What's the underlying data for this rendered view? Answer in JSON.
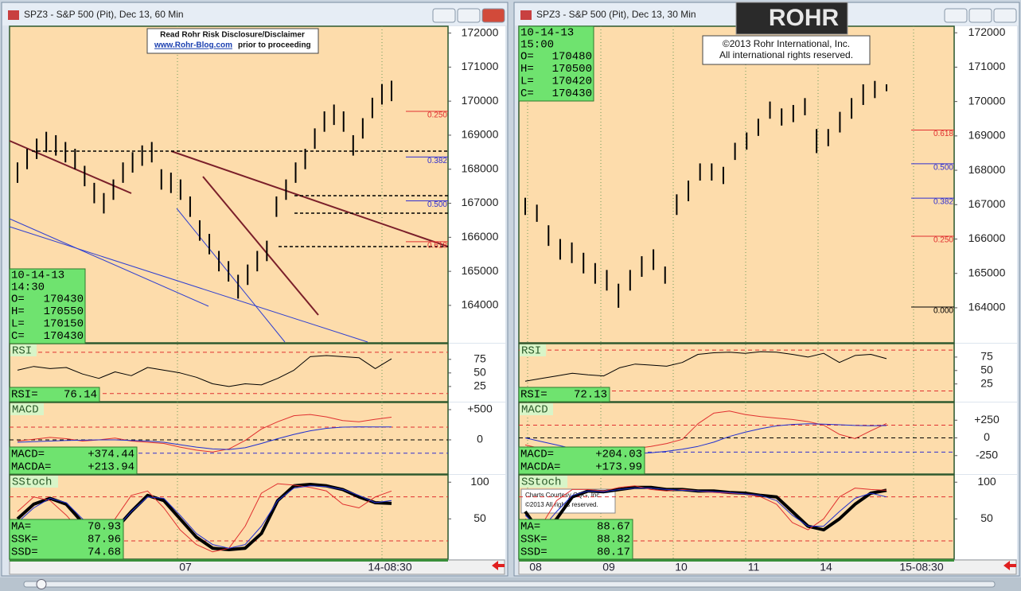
{
  "windows": [
    {
      "title": "SPZ3 - S&P 500 (Pit), Dec 13, 60 Min",
      "notice": [
        "Read Rohr Risk Disclosure/Disclaimer",
        "www.Rohr-Blog.com",
        "prior to proceeding"
      ],
      "price": {
        "lim": [
          162900,
          172200
        ],
        "ticks": [
          172000,
          171000,
          170000,
          169000,
          168000,
          167000,
          166000,
          165000,
          164000
        ],
        "highs": [
          168200,
          168600,
          168900,
          169100,
          169000,
          168800,
          168600,
          168100,
          167600,
          167300,
          167700,
          168200,
          168500,
          168700,
          168800,
          168000,
          167900,
          167700,
          167200,
          166500,
          166100,
          165600,
          165300,
          164900,
          165200,
          165600,
          165900,
          167200,
          167700,
          168200,
          168600,
          169200,
          169700,
          169900,
          169700,
          169000,
          169500,
          170100,
          170500,
          170600
        ],
        "lows": [
          167600,
          168000,
          168300,
          168500,
          168400,
          168200,
          168000,
          167500,
          167000,
          166700,
          167100,
          167600,
          167900,
          168100,
          168200,
          167400,
          167300,
          167100,
          166600,
          165900,
          165500,
          165000,
          164700,
          164200,
          164600,
          165000,
          165300,
          166600,
          167100,
          167600,
          168000,
          168600,
          169100,
          169300,
          169100,
          168400,
          168900,
          169500,
          169900,
          170000
        ]
      },
      "readout": {
        "date": "10-14-13",
        "time": "14:30",
        "rows": [
          {
            "label": "O=",
            "value": 170430
          },
          {
            "label": "H=",
            "value": 170550
          },
          {
            "label": "L=",
            "value": 170150
          },
          {
            "label": "C=",
            "value": 170430
          }
        ]
      },
      "fib": [
        {
          "label": "0.250",
          "price": 169700,
          "color": "#e03030"
        },
        {
          "label": "0.382",
          "price": 168360,
          "color": "#3030d0"
        },
        {
          "label": "0.500",
          "price": 167070,
          "color": "#3030d0"
        },
        {
          "label": "0.618",
          "price": 165870,
          "color": "#e03030"
        }
      ],
      "rsi": {
        "name": "RSI",
        "lim": [
          -3,
          104
        ],
        "ticks": [
          75,
          50,
          25
        ],
        "levels": [
          88,
          12
        ],
        "readout": {
          "label": "RSI=",
          "value": 76.14
        },
        "values": [
          55,
          62,
          58,
          60,
          48,
          40,
          52,
          45,
          60,
          55,
          50,
          42,
          30,
          25,
          30,
          28,
          40,
          55,
          80,
          82,
          80,
          78,
          58,
          76
        ]
      },
      "macd": {
        "name": "MACD",
        "lim": [
          -566,
          618
        ],
        "ticks": [
          {
            "value": 500,
            "label": "+500"
          },
          0
        ],
        "levels": [
          210,
          0,
          -220
        ],
        "series": [
          {
            "color": "#e03030",
            "values": [
              -20,
              10,
              40,
              20,
              -20,
              0,
              30,
              -20,
              -40,
              -60,
              -120,
              -170,
              -200,
              -150,
              -10,
              180,
              300,
              400,
              420,
              380,
              320,
              300,
              340,
              374
            ]
          },
          {
            "color": "#2030d0",
            "values": [
              -40,
              -30,
              -20,
              -10,
              -5,
              0,
              0,
              -10,
              -20,
              -40,
              -80,
              -120,
              -150,
              -160,
              -130,
              -60,
              20,
              90,
              150,
              190,
              210,
              215,
              214,
              214
            ]
          }
        ],
        "readouts": [
          {
            "label": "MACD=",
            "value": 374.44,
            "value_label": "+374.44"
          },
          {
            "label": "MACDA=",
            "value": 213.94,
            "value_label": "+213.94"
          }
        ]
      },
      "stoch": {
        "name": "SStoch",
        "lim": [
          -5,
          110
        ],
        "ticks": [
          100,
          50
        ],
        "levels": [
          80,
          20
        ],
        "series": [
          {
            "color": "#000000",
            "width": 4,
            "values": [
              50,
              70,
              78,
              70,
              45,
              30,
              35,
              60,
              82,
              75,
              50,
              25,
              10,
              8,
              10,
              30,
              75,
              95,
              97,
              95,
              90,
              80,
              72,
              71
            ]
          },
          {
            "color": "#e03030",
            "width": 1,
            "values": [
              60,
              80,
              75,
              55,
              30,
              25,
              50,
              82,
              88,
              65,
              35,
              15,
              5,
              10,
              40,
              85,
              98,
              96,
              93,
              88,
              70,
              65,
              80,
              88
            ]
          },
          {
            "color": "#2030d0",
            "width": 1,
            "values": [
              45,
              65,
              78,
              72,
              50,
              35,
              35,
              60,
              80,
              78,
              55,
              30,
              15,
              10,
              15,
              40,
              75,
              92,
              95,
              94,
              90,
              82,
              72,
              75
            ]
          }
        ],
        "readouts": [
          {
            "label": "MA=",
            "value": 70.93
          },
          {
            "label": "SSK=",
            "value": 87.96
          },
          {
            "label": "SSD=",
            "value": 74.68
          }
        ]
      },
      "time_labels": [
        "07",
        "14-08:30"
      ]
    },
    {
      "title": "SPZ3 - S&P 500 (Pit), Dec 13, 30 Min",
      "logo": "ROHR",
      "notice": [
        "©2013 Rohr International, Inc.",
        "All international rights reserved."
      ],
      "credit": [
        "Charts Courtesy CQG, Inc.",
        "©2013 All rights reserved."
      ],
      "price": {
        "lim": [
          162980,
          172190
        ],
        "ticks": [
          172000,
          171000,
          170000,
          169000,
          168000,
          167000,
          166000,
          165000,
          164000
        ],
        "highs": [
          167200,
          167000,
          166400,
          166000,
          165900,
          165600,
          165300,
          165100,
          164700,
          165100,
          165500,
          165700,
          165200,
          167300,
          167700,
          168200,
          168200,
          168100,
          168800,
          169100,
          169500,
          170000,
          169800,
          169900,
          170100,
          169200,
          169200,
          169700,
          170100,
          170500,
          170600,
          170500
        ],
        "lows": [
          166700,
          166500,
          165800,
          165400,
          165300,
          165000,
          164700,
          164500,
          164000,
          164500,
          164900,
          165100,
          164700,
          166700,
          167100,
          167700,
          167700,
          167600,
          168300,
          168600,
          169000,
          169500,
          169300,
          169400,
          169600,
          168500,
          168700,
          169100,
          169500,
          169900,
          170100,
          170300
        ]
      },
      "readout": {
        "date": "10-14-13",
        "time": "15:00",
        "rows": [
          {
            "label": "O=",
            "value": 170480
          },
          {
            "label": "H=",
            "value": 170500
          },
          {
            "label": "L=",
            "value": 170420
          },
          {
            "label": "C=",
            "value": 170430
          }
        ]
      },
      "fib": [
        {
          "label": "0.618",
          "price": 169170,
          "color": "#e03030"
        },
        {
          "label": "0.500",
          "price": 168190,
          "color": "#3030d0"
        },
        {
          "label": "0.382",
          "price": 167190,
          "color": "#3030d0"
        },
        {
          "label": "0.250",
          "price": 166080,
          "color": "#e03030"
        },
        {
          "label": "0.000",
          "price": 164020,
          "color": "#000000"
        }
      ],
      "rsi": {
        "name": "RSI",
        "lim": [
          -8,
          100
        ],
        "ticks": [
          75,
          50,
          25
        ],
        "levels": [
          88,
          12
        ],
        "readout": {
          "label": "RSI=",
          "value": 72.13
        },
        "values": [
          30,
          35,
          40,
          45,
          42,
          40,
          55,
          62,
          60,
          58,
          65,
          80,
          83,
          84,
          82,
          85,
          84,
          80,
          75,
          82,
          65,
          78,
          80,
          72
        ]
      },
      "macd": {
        "name": "MACD",
        "lim": [
          -511,
          500
        ],
        "ticks": [
          {
            "value": 250,
            "label": "+250"
          },
          0,
          -250
        ],
        "levels": [
          180,
          0,
          -200
        ],
        "series": [
          {
            "color": "#e03030",
            "values": [
              -100,
              -150,
              -200,
              -230,
              -220,
              -200,
              -180,
              -150,
              -120,
              -80,
              -20,
              200,
              350,
              380,
              330,
              300,
              280,
              260,
              230,
              180,
              50,
              -10,
              100,
              204
            ]
          },
          {
            "color": "#2030d0",
            "values": [
              0,
              -50,
              -100,
              -150,
              -190,
              -210,
              -220,
              -220,
              -210,
              -190,
              -160,
              -120,
              -60,
              20,
              80,
              130,
              170,
              190,
              200,
              195,
              185,
              175,
              172,
              174
            ]
          }
        ],
        "readouts": [
          {
            "label": "MACD=",
            "value": 204.03,
            "value_label": "+204.03"
          },
          {
            "label": "MACDA=",
            "value": 173.99,
            "value_label": "+173.99"
          }
        ]
      },
      "stoch": {
        "name": "SStoch",
        "lim": [
          -5,
          110
        ],
        "ticks": [
          100,
          50
        ],
        "levels": [
          80,
          20
        ],
        "series": [
          {
            "color": "#000000",
            "width": 4,
            "values": [
              60,
              30,
              50,
              80,
              88,
              87,
              90,
              93,
              93,
              90,
              90,
              88,
              88,
              86,
              85,
              82,
              80,
              60,
              40,
              35,
              50,
              70,
              85,
              89
            ]
          },
          {
            "color": "#e03030",
            "width": 1,
            "values": [
              50,
              40,
              75,
              90,
              90,
              88,
              93,
              95,
              90,
              88,
              90,
              88,
              86,
              85,
              84,
              80,
              70,
              45,
              35,
              50,
              80,
              92,
              90,
              89
            ]
          },
          {
            "color": "#2030d0",
            "width": 1,
            "values": [
              55,
              35,
              60,
              82,
              88,
              87,
              90,
              92,
              92,
              90,
              89,
              88,
              87,
              86,
              84,
              82,
              75,
              55,
              40,
              40,
              60,
              78,
              85,
              80
            ]
          }
        ],
        "readouts": [
          {
            "label": "MA=",
            "value": 88.67
          },
          {
            "label": "SSK=",
            "value": 88.82
          },
          {
            "label": "SSD=",
            "value": 80.17
          }
        ]
      },
      "time_labels": [
        "08",
        "09",
        "10",
        "11",
        "14",
        "15-08:30"
      ]
    }
  ]
}
